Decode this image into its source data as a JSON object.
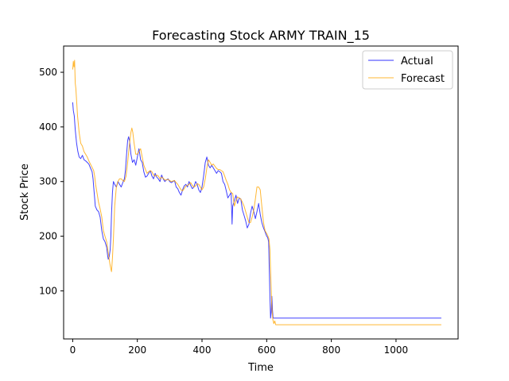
{
  "chart_data": {
    "type": "line",
    "title": "Forecasting Stock ARMY TRAIN_15",
    "xlabel": "Time",
    "ylabel": "Stock Price",
    "xlim": [
      -28,
      1192
    ],
    "ylim": [
      12,
      548
    ],
    "xticks": [
      0,
      200,
      400,
      600,
      800,
      1000
    ],
    "yticks": [
      100,
      200,
      300,
      400,
      500
    ],
    "grid": false,
    "legend_position": "top-right",
    "series": [
      {
        "name": "Actual",
        "color": "#0000ff",
        "points": [
          [
            0,
            445
          ],
          [
            2,
            430
          ],
          [
            5,
            420
          ],
          [
            8,
            395
          ],
          [
            12,
            370
          ],
          [
            16,
            355
          ],
          [
            20,
            345
          ],
          [
            25,
            342
          ],
          [
            30,
            348
          ],
          [
            35,
            340
          ],
          [
            40,
            338
          ],
          [
            45,
            335
          ],
          [
            50,
            332
          ],
          [
            55,
            325
          ],
          [
            60,
            318
          ],
          [
            63,
            305
          ],
          [
            65,
            290
          ],
          [
            68,
            270
          ],
          [
            70,
            255
          ],
          [
            75,
            248
          ],
          [
            80,
            245
          ],
          [
            85,
            235
          ],
          [
            90,
            210
          ],
          [
            95,
            195
          ],
          [
            100,
            190
          ],
          [
            105,
            180
          ],
          [
            108,
            165
          ],
          [
            110,
            158
          ],
          [
            113,
            162
          ],
          [
            116,
            175
          ],
          [
            118,
            200
          ],
          [
            120,
            240
          ],
          [
            123,
            280
          ],
          [
            126,
            300
          ],
          [
            130,
            295
          ],
          [
            135,
            290
          ],
          [
            140,
            300
          ],
          [
            145,
            295
          ],
          [
            150,
            290
          ],
          [
            155,
            298
          ],
          [
            160,
            305
          ],
          [
            163,
            320
          ],
          [
            166,
            345
          ],
          [
            170,
            375
          ],
          [
            173,
            382
          ],
          [
            176,
            375
          ],
          [
            180,
            350
          ],
          [
            185,
            335
          ],
          [
            190,
            340
          ],
          [
            195,
            330
          ],
          [
            200,
            345
          ],
          [
            205,
            360
          ],
          [
            210,
            340
          ],
          [
            215,
            335
          ],
          [
            220,
            318
          ],
          [
            225,
            308
          ],
          [
            230,
            310
          ],
          [
            235,
            315
          ],
          [
            240,
            320
          ],
          [
            245,
            310
          ],
          [
            250,
            305
          ],
          [
            255,
            315
          ],
          [
            260,
            308
          ],
          [
            265,
            305
          ],
          [
            270,
            300
          ],
          [
            275,
            312
          ],
          [
            280,
            305
          ],
          [
            285,
            300
          ],
          [
            290,
            303
          ],
          [
            295,
            305
          ],
          [
            300,
            300
          ],
          [
            305,
            298
          ],
          [
            310,
            300
          ],
          [
            315,
            302
          ],
          [
            320,
            290
          ],
          [
            325,
            287
          ],
          [
            330,
            280
          ],
          [
            335,
            275
          ],
          [
            340,
            285
          ],
          [
            345,
            292
          ],
          [
            350,
            295
          ],
          [
            355,
            290
          ],
          [
            360,
            300
          ],
          [
            365,
            293
          ],
          [
            370,
            287
          ],
          [
            375,
            290
          ],
          [
            380,
            300
          ],
          [
            385,
            295
          ],
          [
            390,
            285
          ],
          [
            395,
            280
          ],
          [
            400,
            290
          ],
          [
            405,
            310
          ],
          [
            410,
            335
          ],
          [
            415,
            345
          ],
          [
            420,
            330
          ],
          [
            425,
            325
          ],
          [
            430,
            330
          ],
          [
            435,
            325
          ],
          [
            440,
            320
          ],
          [
            445,
            315
          ],
          [
            450,
            320
          ],
          [
            455,
            318
          ],
          [
            460,
            315
          ],
          [
            465,
            300
          ],
          [
            470,
            295
          ],
          [
            475,
            283
          ],
          [
            480,
            270
          ],
          [
            485,
            275
          ],
          [
            490,
            280
          ],
          [
            493,
            222
          ],
          [
            495,
            255
          ],
          [
            500,
            265
          ],
          [
            505,
            275
          ],
          [
            510,
            260
          ],
          [
            515,
            270
          ],
          [
            520,
            268
          ],
          [
            525,
            248
          ],
          [
            530,
            238
          ],
          [
            535,
            228
          ],
          [
            540,
            215
          ],
          [
            545,
            222
          ],
          [
            550,
            242
          ],
          [
            555,
            255
          ],
          [
            560,
            245
          ],
          [
            565,
            232
          ],
          [
            570,
            245
          ],
          [
            575,
            260
          ],
          [
            580,
            240
          ],
          [
            585,
            225
          ],
          [
            590,
            215
          ],
          [
            595,
            208
          ],
          [
            600,
            200
          ],
          [
            603,
            198
          ],
          [
            606,
            190
          ],
          [
            608,
            140
          ],
          [
            610,
            90
          ],
          [
            612,
            50
          ],
          [
            614,
            60
          ],
          [
            616,
            90
          ],
          [
            618,
            65
          ],
          [
            620,
            50
          ],
          [
            700,
            50
          ],
          [
            800,
            50
          ],
          [
            900,
            50
          ],
          [
            1000,
            50
          ],
          [
            1100,
            50
          ],
          [
            1140,
            50
          ]
        ]
      },
      {
        "name": "Forecast",
        "color": "#ffa500",
        "points": [
          [
            0,
            505
          ],
          [
            2,
            520
          ],
          [
            4,
            510
          ],
          [
            6,
            522
          ],
          [
            8,
            480
          ],
          [
            10,
            470
          ],
          [
            15,
            420
          ],
          [
            20,
            390
          ],
          [
            25,
            370
          ],
          [
            30,
            365
          ],
          [
            35,
            355
          ],
          [
            40,
            350
          ],
          [
            45,
            345
          ],
          [
            50,
            338
          ],
          [
            55,
            332
          ],
          [
            60,
            326
          ],
          [
            65,
            320
          ],
          [
            68,
            310
          ],
          [
            71,
            295
          ],
          [
            75,
            280
          ],
          [
            80,
            262
          ],
          [
            85,
            250
          ],
          [
            90,
            235
          ],
          [
            95,
            210
          ],
          [
            100,
            200
          ],
          [
            105,
            190
          ],
          [
            110,
            170
          ],
          [
            115,
            150
          ],
          [
            118,
            140
          ],
          [
            120,
            135
          ],
          [
            123,
            160
          ],
          [
            126,
            195
          ],
          [
            130,
            255
          ],
          [
            135,
            290
          ],
          [
            140,
            300
          ],
          [
            145,
            305
          ],
          [
            150,
            305
          ],
          [
            155,
            302
          ],
          [
            160,
            300
          ],
          [
            165,
            310
          ],
          [
            170,
            335
          ],
          [
            175,
            365
          ],
          [
            180,
            390
          ],
          [
            183,
            398
          ],
          [
            186,
            390
          ],
          [
            190,
            370
          ],
          [
            195,
            350
          ],
          [
            200,
            350
          ],
          [
            205,
            355
          ],
          [
            210,
            360
          ],
          [
            215,
            345
          ],
          [
            220,
            330
          ],
          [
            225,
            322
          ],
          [
            230,
            315
          ],
          [
            235,
            318
          ],
          [
            240,
            320
          ],
          [
            245,
            318
          ],
          [
            250,
            312
          ],
          [
            255,
            310
          ],
          [
            260,
            312
          ],
          [
            265,
            310
          ],
          [
            270,
            305
          ],
          [
            275,
            308
          ],
          [
            280,
            306
          ],
          [
            285,
            303
          ],
          [
            290,
            303
          ],
          [
            295,
            304
          ],
          [
            300,
            302
          ],
          [
            305,
            300
          ],
          [
            310,
            301
          ],
          [
            315,
            302
          ],
          [
            320,
            298
          ],
          [
            325,
            295
          ],
          [
            330,
            290
          ],
          [
            335,
            285
          ],
          [
            340,
            283
          ],
          [
            345,
            287
          ],
          [
            350,
            292
          ],
          [
            355,
            293
          ],
          [
            360,
            295
          ],
          [
            365,
            298
          ],
          [
            370,
            293
          ],
          [
            375,
            290
          ],
          [
            380,
            292
          ],
          [
            385,
            296
          ],
          [
            390,
            295
          ],
          [
            395,
            290
          ],
          [
            400,
            285
          ],
          [
            405,
            290
          ],
          [
            410,
            305
          ],
          [
            415,
            325
          ],
          [
            420,
            340
          ],
          [
            425,
            335
          ],
          [
            430,
            330
          ],
          [
            435,
            332
          ],
          [
            440,
            328
          ],
          [
            445,
            324
          ],
          [
            450,
            322
          ],
          [
            455,
            322
          ],
          [
            460,
            320
          ],
          [
            465,
            318
          ],
          [
            470,
            310
          ],
          [
            475,
            302
          ],
          [
            480,
            295
          ],
          [
            485,
            285
          ],
          [
            490,
            280
          ],
          [
            495,
            278
          ],
          [
            500,
            255
          ],
          [
            505,
            265
          ],
          [
            510,
            272
          ],
          [
            515,
            270
          ],
          [
            520,
            268
          ],
          [
            525,
            262
          ],
          [
            530,
            255
          ],
          [
            535,
            245
          ],
          [
            540,
            235
          ],
          [
            545,
            225
          ],
          [
            550,
            225
          ],
          [
            555,
            235
          ],
          [
            560,
            248
          ],
          [
            565,
            268
          ],
          [
            570,
            290
          ],
          [
            575,
            290
          ],
          [
            580,
            285
          ],
          [
            585,
            255
          ],
          [
            590,
            225
          ],
          [
            595,
            210
          ],
          [
            600,
            205
          ],
          [
            604,
            200
          ],
          [
            607,
            195
          ],
          [
            610,
            175
          ],
          [
            613,
            120
          ],
          [
            616,
            70
          ],
          [
            619,
            48
          ],
          [
            622,
            40
          ],
          [
            625,
            45
          ],
          [
            628,
            38
          ],
          [
            640,
            38
          ],
          [
            700,
            38
          ],
          [
            800,
            38
          ],
          [
            900,
            38
          ],
          [
            1000,
            38
          ],
          [
            1100,
            38
          ],
          [
            1140,
            38
          ]
        ]
      }
    ]
  }
}
